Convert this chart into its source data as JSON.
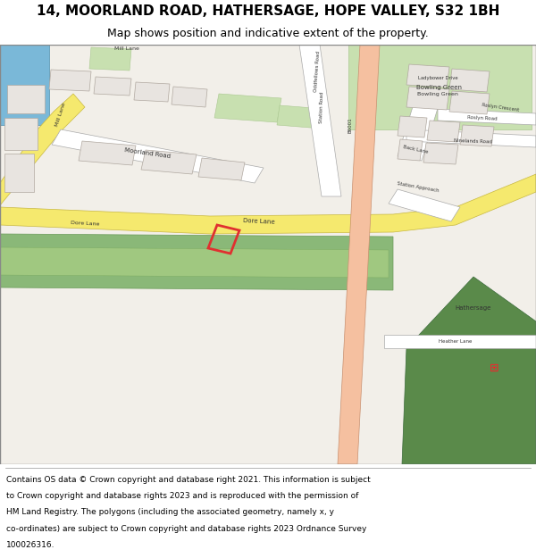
{
  "title_line1": "14, MOORLAND ROAD, HATHERSAGE, HOPE VALLEY, S32 1BH",
  "title_line2": "Map shows position and indicative extent of the property.",
  "bg_color": "#ffffff",
  "map_bg": "#f2efe9",
  "road_yellow": "#f5e96e",
  "road_pink": "#f5c0a0",
  "road_white": "#ffffff",
  "green_dark": "#5a8a4a",
  "green_light": "#c8e0b0",
  "green_medium": "#8ab878",
  "plot_color": "#e03030",
  "title_fontsize": 11,
  "subtitle_fontsize": 9,
  "footer_lines": [
    "Contains OS data © Crown copyright and database right 2021. This information is subject",
    "to Crown copyright and database rights 2023 and is reproduced with the permission of",
    "HM Land Registry. The polygons (including the associated geometry, namely x, y",
    "co-ordinates) are subject to Crown copyright and database rights 2023 Ordnance Survey",
    "100026316."
  ]
}
